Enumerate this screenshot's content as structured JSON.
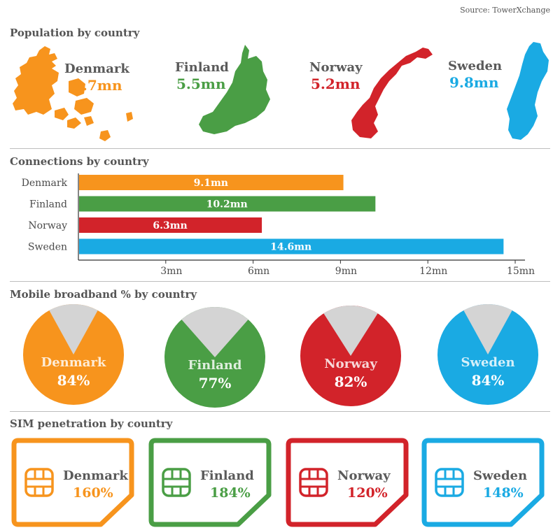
{
  "source": "Source: TowerXchange",
  "colors": {
    "denmark": "#f7941d",
    "finland": "#4a9e45",
    "norway": "#d2232a",
    "sweden": "#1aaae3",
    "pie_remainder": "#d4d4d4",
    "divider": "#bdbdbd"
  },
  "population": {
    "title": "Population by country",
    "items": [
      {
        "country": "Denmark",
        "value": "5.7mn",
        "map_icon": "denmark-map-icon"
      },
      {
        "country": "Finland",
        "value": "5.5mn",
        "map_icon": "finland-map-icon"
      },
      {
        "country": "Norway",
        "value": "5.2mn",
        "map_icon": "norway-map-icon"
      },
      {
        "country": "Sweden",
        "value": "9.8mn",
        "map_icon": "sweden-map-icon"
      }
    ]
  },
  "broadband": {
    "title": "Mobile broadband % by country",
    "items": [
      {
        "country": "Denmark",
        "label": "84%",
        "percent": 84
      },
      {
        "country": "Finland",
        "label": "77%",
        "percent": 77
      },
      {
        "country": "Norway",
        "label": "82%",
        "percent": 82
      },
      {
        "country": "Sweden",
        "label": "84%",
        "percent": 84
      }
    ]
  },
  "sim": {
    "title": "SIM penetration by country",
    "items": [
      {
        "country": "Denmark",
        "value": "160%",
        "icon": "sim-chip-icon"
      },
      {
        "country": "Finland",
        "value": "184%",
        "icon": "sim-chip-icon"
      },
      {
        "country": "Norway",
        "value": "120%",
        "icon": "sim-chip-icon"
      },
      {
        "country": "Sweden",
        "value": "148%",
        "icon": "sim-chip-icon"
      }
    ]
  },
  "chart_data": [
    {
      "type": "bar",
      "orientation": "horizontal",
      "title": "Connections by country",
      "categories": [
        "Denmark",
        "Finland",
        "Norway",
        "Sweden"
      ],
      "values": [
        9.1,
        10.2,
        6.3,
        14.6
      ],
      "data_labels": [
        "9.1mn",
        "10.2mn",
        "6.3mn",
        "14.6mn"
      ],
      "xlim": [
        0,
        15
      ],
      "x_ticks": [
        3,
        6,
        9,
        12,
        15
      ],
      "x_tick_labels": [
        "3mn",
        "6mn",
        "9mn",
        "12mn",
        "15mn"
      ],
      "grid": false
    }
  ]
}
